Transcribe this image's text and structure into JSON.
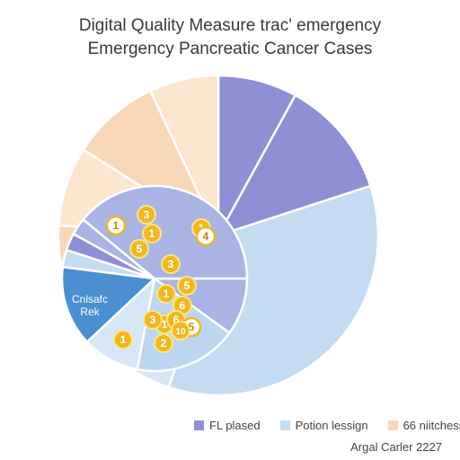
{
  "title": "Digital Quality Measure trac' emergency",
  "subtitle": "Emergency Pancreatic Cancer Cases",
  "source": "Argal Carler 2227",
  "colors": {
    "purple": "#8e8fd4",
    "blue": "#c4dcf1",
    "peach": "#f9d8b8",
    "dark_blue": "#4a8fd0",
    "coin": "#f0b81f"
  },
  "legend": [
    {
      "label": "FL plased",
      "color": "#8e8fd4"
    },
    {
      "label": "Potion lessign",
      "color": "#c4dcf1"
    },
    {
      "label": "66 niitchess",
      "color": "#f9d8b8"
    }
  ],
  "chart_data": {
    "type": "pie",
    "outer_slices": [
      {
        "series": "FL plased",
        "value": 8,
        "color": "#8e8fd4"
      },
      {
        "series": "FL plased",
        "value": 12,
        "color": "#8e8fd4"
      },
      {
        "series": "Potion lessign",
        "value": 35,
        "color": "#c4dcf1"
      },
      {
        "series": "Potion lessign",
        "value": 6,
        "color": "#d7e7f7"
      },
      {
        "series": "Potion lessign",
        "value": 5,
        "color": "#c4dcf1"
      },
      {
        "series": "Potion lessign",
        "value": 3,
        "color": "#d7e7f7"
      },
      {
        "series": "Potion lessign",
        "value": 2,
        "color": "#c4dcf1"
      },
      {
        "series": "66 niitchess",
        "value": 5,
        "color": "#f9d8b8"
      },
      {
        "series": "66 niitchess",
        "value": 8,
        "color": "#fde6cf"
      },
      {
        "series": "66 niitchess",
        "value": 9,
        "color": "#f9d8b8"
      },
      {
        "series": "66 niitchess",
        "value": 7,
        "color": "#fde6cf"
      }
    ],
    "inner_slices": [
      {
        "value": 10,
        "color": "#a9b4e4"
      },
      {
        "value": 18,
        "color": "#bcd6f0"
      },
      {
        "value": 10,
        "color": "#d7e7f7"
      },
      {
        "value": 14,
        "color": "#4a8fd0",
        "label": "Cnlsafc Rek"
      },
      {
        "value": 3,
        "color": "#c4dcf1"
      },
      {
        "value": 3,
        "color": "#8e8fd4"
      },
      {
        "value": 3,
        "color": "#a9b4e4"
      },
      {
        "value": 39,
        "color": "#a9b4e4"
      }
    ],
    "markers": [
      {
        "text": "1",
        "style": "white"
      },
      {
        "text": "3",
        "style": "gold"
      },
      {
        "text": "1",
        "style": "gold"
      },
      {
        "text": "5",
        "style": "gold"
      },
      {
        "text": "1",
        "style": "gold"
      },
      {
        "text": "4",
        "style": "white"
      },
      {
        "text": "3",
        "style": "gold"
      },
      {
        "text": "1",
        "style": "gold"
      },
      {
        "text": "5",
        "style": "gold"
      },
      {
        "text": "6",
        "style": "gold"
      },
      {
        "text": "1",
        "style": "gold"
      },
      {
        "text": "3",
        "style": "gold"
      },
      {
        "text": "6",
        "style": "gold"
      },
      {
        "text": "5",
        "style": "white"
      },
      {
        "text": "1",
        "style": "gold"
      },
      {
        "text": "2",
        "style": "gold"
      },
      {
        "text": "10",
        "style": "gold"
      }
    ]
  }
}
